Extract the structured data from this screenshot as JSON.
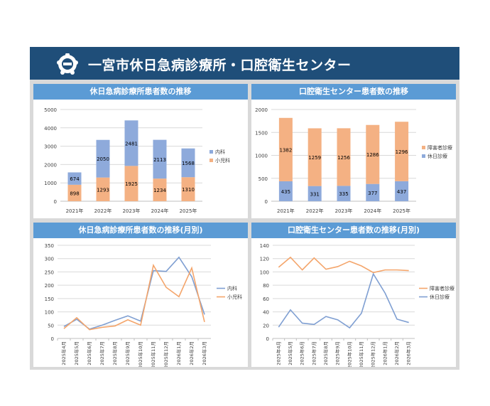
{
  "header": {
    "title": "一宮市休日急病診療所・口腔衛生センター"
  },
  "colors": {
    "banner": "#1f4e79",
    "panel_header": "#5b9bd5",
    "blue": "#8eaadb",
    "orange": "#f4b183",
    "line_blue": "#7f9fd2",
    "line_orange": "#f4a56b"
  },
  "chart_data": [
    {
      "type": "bar",
      "title": "休日急病診療所患者数の推移",
      "stacked": true,
      "categories": [
        "2021年",
        "2022年",
        "2023年",
        "2024年",
        "2025年"
      ],
      "series": [
        {
          "name": "小児科",
          "values": [
            898,
            1293,
            1925,
            1234,
            1310
          ],
          "color": "#f4b183"
        },
        {
          "name": "内科",
          "values": [
            674,
            2050,
            2481,
            2113,
            1568
          ],
          "color": "#8eaadb"
        }
      ],
      "legend": [
        "内科",
        "小児科"
      ],
      "ylim": [
        0,
        5000
      ],
      "yticks": [
        "0",
        "1000",
        "2000",
        "3000",
        "4000",
        "5000"
      ],
      "grid": true,
      "legend_position": "right"
    },
    {
      "type": "bar",
      "title": "口腔衛生センター患者数の推移",
      "stacked": true,
      "categories": [
        "2021年",
        "2022年",
        "2023年",
        "2024年",
        "2025年"
      ],
      "series": [
        {
          "name": "休日診療",
          "values": [
            435,
            331,
            335,
            377,
            437
          ],
          "color": "#8eaadb"
        },
        {
          "name": "障害者診療",
          "values": [
            1382,
            1259,
            1256,
            1286,
            1296
          ],
          "color": "#f4b183"
        }
      ],
      "legend": [
        "障害者診療",
        "休日診療"
      ],
      "ylim": [
        0,
        2000
      ],
      "yticks": [
        "0",
        "500",
        "1000",
        "1500",
        "2000"
      ],
      "grid": true,
      "legend_position": "right"
    },
    {
      "type": "line",
      "title": "休日急病診療所患者数の推移(月別)",
      "categories": [
        "2025年4月",
        "2025年5月",
        "2025年6月",
        "2025年7月",
        "2025年8月",
        "2025年9月",
        "2025年10月",
        "2025年11月",
        "2025年12月",
        "2026年1月",
        "2026年2月",
        "2026年3月"
      ],
      "series": [
        {
          "name": "内科",
          "values": [
            45,
            72,
            35,
            50,
            68,
            85,
            65,
            255,
            252,
            305,
            232,
            90
          ],
          "color": "#7f9fd2"
        },
        {
          "name": "小児科",
          "values": [
            37,
            78,
            33,
            42,
            47,
            70,
            50,
            275,
            192,
            157,
            265,
            62
          ],
          "color": "#f4a56b"
        }
      ],
      "legend": [
        "内科",
        "小児科"
      ],
      "ylim": [
        0,
        350
      ],
      "yticks": [
        "0",
        "50",
        "100",
        "150",
        "200",
        "250",
        "300",
        "350"
      ],
      "grid": true,
      "legend_position": "right"
    },
    {
      "type": "line",
      "title": "口腔衛生センター患者数の推移(月別)",
      "categories": [
        "2025年4月",
        "2025年5月",
        "2025年6月",
        "2025年7月",
        "2025年8月",
        "2025年9月",
        "2025年10月",
        "2025年11月",
        "2025年12月",
        "2026年1月",
        "2026年2月",
        "2026年3月"
      ],
      "series": [
        {
          "name": "障害者診療",
          "values": [
            107,
            122,
            103,
            121,
            104,
            108,
            116,
            109,
            99,
            103,
            103,
            102
          ],
          "color": "#f4a56b"
        },
        {
          "name": "休日診療",
          "values": [
            17,
            43,
            23,
            21,
            33,
            28,
            16,
            38,
            97,
            68,
            29,
            24
          ],
          "color": "#7f9fd2"
        }
      ],
      "legend": [
        "障害者診療",
        "休日診療"
      ],
      "ylim": [
        0,
        140
      ],
      "yticks": [
        "0",
        "20",
        "40",
        "60",
        "80",
        "100",
        "120",
        "140"
      ],
      "grid": true,
      "legend_position": "right"
    }
  ]
}
